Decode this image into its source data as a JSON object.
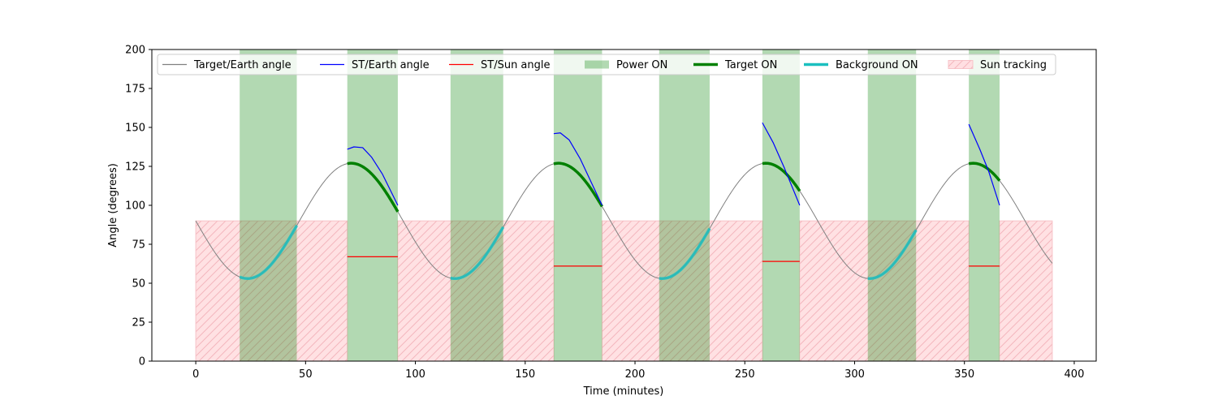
{
  "chart_data": {
    "type": "line",
    "title": "",
    "xlabel": "Time (minutes)",
    "ylabel": "Angle (degrees)",
    "xlim": [
      -20,
      410
    ],
    "ylim": [
      0,
      200
    ],
    "xticks": [
      0,
      50,
      100,
      150,
      200,
      250,
      300,
      350,
      400
    ],
    "yticks": [
      0,
      25,
      50,
      75,
      100,
      125,
      150,
      175,
      200
    ],
    "legend_position": "top",
    "target_earth": {
      "period": 94.4,
      "mean": 90.0,
      "amplitude": 37.0,
      "x_start": 0,
      "x_end": 390
    },
    "legend": [
      {
        "label": "Target/Earth angle",
        "kind": "line",
        "color": "#808080"
      },
      {
        "label": "ST/Earth angle",
        "kind": "line",
        "color": "#0000ff"
      },
      {
        "label": "ST/Sun angle",
        "kind": "line",
        "color": "#ff0000"
      },
      {
        "label": "Power ON",
        "kind": "patch",
        "color": "#b3d9b3"
      },
      {
        "label": "Target ON",
        "kind": "thick-line",
        "color": "#008000"
      },
      {
        "label": "Background ON",
        "kind": "thick-line",
        "color": "#1abfbf"
      },
      {
        "label": "Sun tracking",
        "kind": "hatch",
        "color": "#ffdfe2"
      }
    ],
    "power_on": [
      [
        20,
        46
      ],
      [
        69,
        92
      ],
      [
        116,
        140
      ],
      [
        163,
        185
      ],
      [
        211,
        234
      ],
      [
        258,
        275
      ],
      [
        306,
        328
      ],
      [
        352,
        366
      ]
    ],
    "sun_tracking": [
      [
        0,
        69
      ],
      [
        92,
        163
      ],
      [
        185,
        258
      ],
      [
        275,
        352
      ],
      [
        366,
        390
      ]
    ],
    "sun_tracking_level": 90,
    "target_on": [
      [
        69,
        92
      ],
      [
        163,
        185
      ],
      [
        258,
        275
      ],
      [
        352,
        366
      ]
    ],
    "background_on": [
      [
        20,
        46
      ],
      [
        116,
        140
      ],
      [
        211,
        234
      ],
      [
        306,
        328
      ]
    ],
    "st_earth": [
      {
        "x": [
          69,
          72,
          76,
          80,
          85,
          92
        ],
        "y": [
          136,
          137.5,
          137,
          131,
          120,
          100
        ]
      },
      {
        "x": [
          163,
          166,
          170,
          175,
          180,
          185
        ],
        "y": [
          146,
          146.5,
          142,
          130,
          115,
          100
        ]
      },
      {
        "x": [
          258,
          263,
          268,
          275
        ],
        "y": [
          153,
          140,
          124,
          100
        ]
      },
      {
        "x": [
          352,
          357,
          361,
          366
        ],
        "y": [
          152,
          136,
          122,
          100
        ]
      }
    ],
    "st_sun": [
      {
        "x": [
          69,
          92
        ],
        "y": [
          67,
          67
        ]
      },
      {
        "x": [
          163,
          185
        ],
        "y": [
          61,
          61
        ]
      },
      {
        "x": [
          258,
          275
        ],
        "y": [
          64,
          64
        ]
      },
      {
        "x": [
          352,
          366
        ],
        "y": [
          61,
          61
        ]
      }
    ]
  }
}
